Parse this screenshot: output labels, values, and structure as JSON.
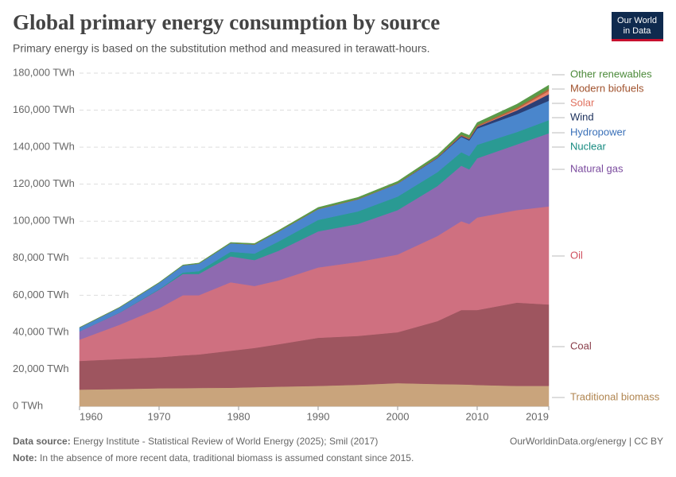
{
  "chart_data": {
    "type": "stacked-area",
    "title": "Global primary energy consumption by source",
    "subtitle": "Primary energy is based on the substitution method and measured in terawatt-hours.",
    "logo": [
      "Our World",
      "in Data"
    ],
    "source_label": "Data source:",
    "source": "Energy Institute - Statistical Review of World Energy (2025); Smil (2017)",
    "link": "OurWorldinData.org/energy | CC BY",
    "note_label": "Note:",
    "note": "In the absence of more recent data, traditional biomass is assumed constant since 2015.",
    "x": [
      1960,
      1965,
      1970,
      1973,
      1975,
      1979,
      1982,
      1985,
      1990,
      1995,
      2000,
      2005,
      2008,
      2009,
      2010,
      2015,
      2019
    ],
    "xlim": [
      1960,
      2019
    ],
    "xticks": [
      1960,
      1970,
      1980,
      1990,
      2000,
      2010,
      2019
    ],
    "ylim": [
      0,
      180000
    ],
    "yticks": [
      {
        "value": 0,
        "label": "0 TWh"
      },
      {
        "value": 20000,
        "label": "20,000 TWh"
      },
      {
        "value": 40000,
        "label": "40,000 TWh"
      },
      {
        "value": 60000,
        "label": "60,000 TWh"
      },
      {
        "value": 80000,
        "label": "80,000 TWh"
      },
      {
        "value": 100000,
        "label": "100,000 TWh"
      },
      {
        "value": 120000,
        "label": "120,000 TWh"
      },
      {
        "value": 140000,
        "label": "140,000 TWh"
      },
      {
        "value": 160000,
        "label": "160,000 TWh"
      },
      {
        "value": 180000,
        "label": "180,000 TWh"
      }
    ],
    "grid": true,
    "series": [
      {
        "name": "Traditional biomass",
        "color": "#c9a47c",
        "label_color": "#b08550",
        "values": [
          9000,
          9300,
          9700,
          9800,
          9900,
          10000,
          10300,
          10600,
          11000,
          11600,
          12500,
          12000,
          11800,
          11700,
          11500,
          11000,
          11000
        ]
      },
      {
        "name": "Coal",
        "color": "#9e555f",
        "label_color": "#883c48",
        "values": [
          15500,
          16200,
          16800,
          17700,
          18100,
          20000,
          21200,
          22900,
          26000,
          26400,
          27500,
          34000,
          40200,
          40300,
          40500,
          45000,
          44000
        ]
      },
      {
        "name": "Oil",
        "color": "#cf7080",
        "label_color": "#d0505f",
        "values": [
          11500,
          18500,
          26500,
          32500,
          32000,
          37000,
          33500,
          34500,
          38000,
          40000,
          42000,
          46000,
          48000,
          46500,
          50000,
          50000,
          53000
        ]
      },
      {
        "name": "Natural gas",
        "color": "#8e6ab0",
        "label_color": "#7a4a9e",
        "values": [
          4500,
          6500,
          10000,
          11500,
          11500,
          14000,
          14000,
          16000,
          19500,
          20500,
          24000,
          27000,
          30000,
          29500,
          32000,
          35500,
          39500
        ]
      },
      {
        "name": "Nuclear",
        "color": "#2a9a93",
        "label_color": "#168a80",
        "values": [
          0,
          100,
          300,
          800,
          1500,
          2500,
          3500,
          5000,
          6200,
          6800,
          7300,
          7500,
          7300,
          7200,
          7300,
          6700,
          7100
        ]
      },
      {
        "name": "Hydropower",
        "color": "#4a86cc",
        "label_color": "#3a70b8",
        "values": [
          2000,
          2700,
          3400,
          3800,
          4100,
          4600,
          4900,
          5300,
          5800,
          6500,
          7000,
          7600,
          8300,
          8400,
          8800,
          9600,
          10500
        ]
      },
      {
        "name": "Wind",
        "color": "#2b3f75",
        "label_color": "#1a2e5a",
        "values": [
          0,
          0,
          0,
          0,
          0,
          0,
          0,
          0,
          10,
          20,
          80,
          260,
          560,
          700,
          900,
          2100,
          3500
        ]
      },
      {
        "name": "Solar",
        "color": "#e8806a",
        "label_color": "#e0705e",
        "values": [
          0,
          0,
          0,
          0,
          0,
          0,
          0,
          0,
          0,
          0,
          0,
          10,
          30,
          50,
          90,
          650,
          1800
        ]
      },
      {
        "name": "Modern biofuels",
        "color": "#b5643c",
        "label_color": "#a0522d",
        "values": [
          0,
          0,
          0,
          0,
          0,
          20,
          50,
          80,
          120,
          150,
          150,
          300,
          600,
          650,
          700,
          900,
          1100
        ]
      },
      {
        "name": "Other renewables",
        "color": "#5a9a48",
        "label_color": "#4c8a3a",
        "values": [
          100,
          150,
          200,
          250,
          300,
          400,
          500,
          600,
          800,
          900,
          1000,
          1100,
          1300,
          1400,
          1500,
          1800,
          2000
        ]
      }
    ]
  }
}
